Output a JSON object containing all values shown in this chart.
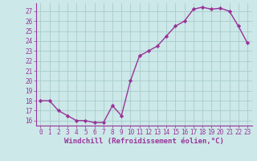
{
  "x": [
    0,
    1,
    2,
    3,
    4,
    5,
    6,
    7,
    8,
    9,
    10,
    11,
    12,
    13,
    14,
    15,
    16,
    17,
    18,
    19,
    20,
    21,
    22,
    23
  ],
  "y": [
    18,
    18,
    17,
    16.5,
    16,
    16,
    15.8,
    15.8,
    17.5,
    16.5,
    20,
    22.5,
    23,
    23.5,
    24.5,
    25.5,
    26,
    27.2,
    27.4,
    27.2,
    27.3,
    27.0,
    25.5,
    23.8
  ],
  "line_color": "#993399",
  "marker": "D",
  "marker_size": 2.2,
  "bg_color": "#cce8e8",
  "grid_color": "#aacccc",
  "xlabel": "Windchill (Refroidissement éolien,°C)",
  "ylim": [
    15.5,
    27.8
  ],
  "yticks": [
    16,
    17,
    18,
    19,
    20,
    21,
    22,
    23,
    24,
    25,
    26,
    27
  ],
  "xticks": [
    0,
    1,
    2,
    3,
    4,
    5,
    6,
    7,
    8,
    9,
    10,
    11,
    12,
    13,
    14,
    15,
    16,
    17,
    18,
    19,
    20,
    21,
    22,
    23
  ],
  "xlim": [
    -0.5,
    23.5
  ],
  "tick_color": "#993399",
  "label_color": "#993399",
  "spine_color": "#993399",
  "tick_fontsize": 5.5,
  "xlabel_fontsize": 6.5,
  "linewidth": 1.0
}
